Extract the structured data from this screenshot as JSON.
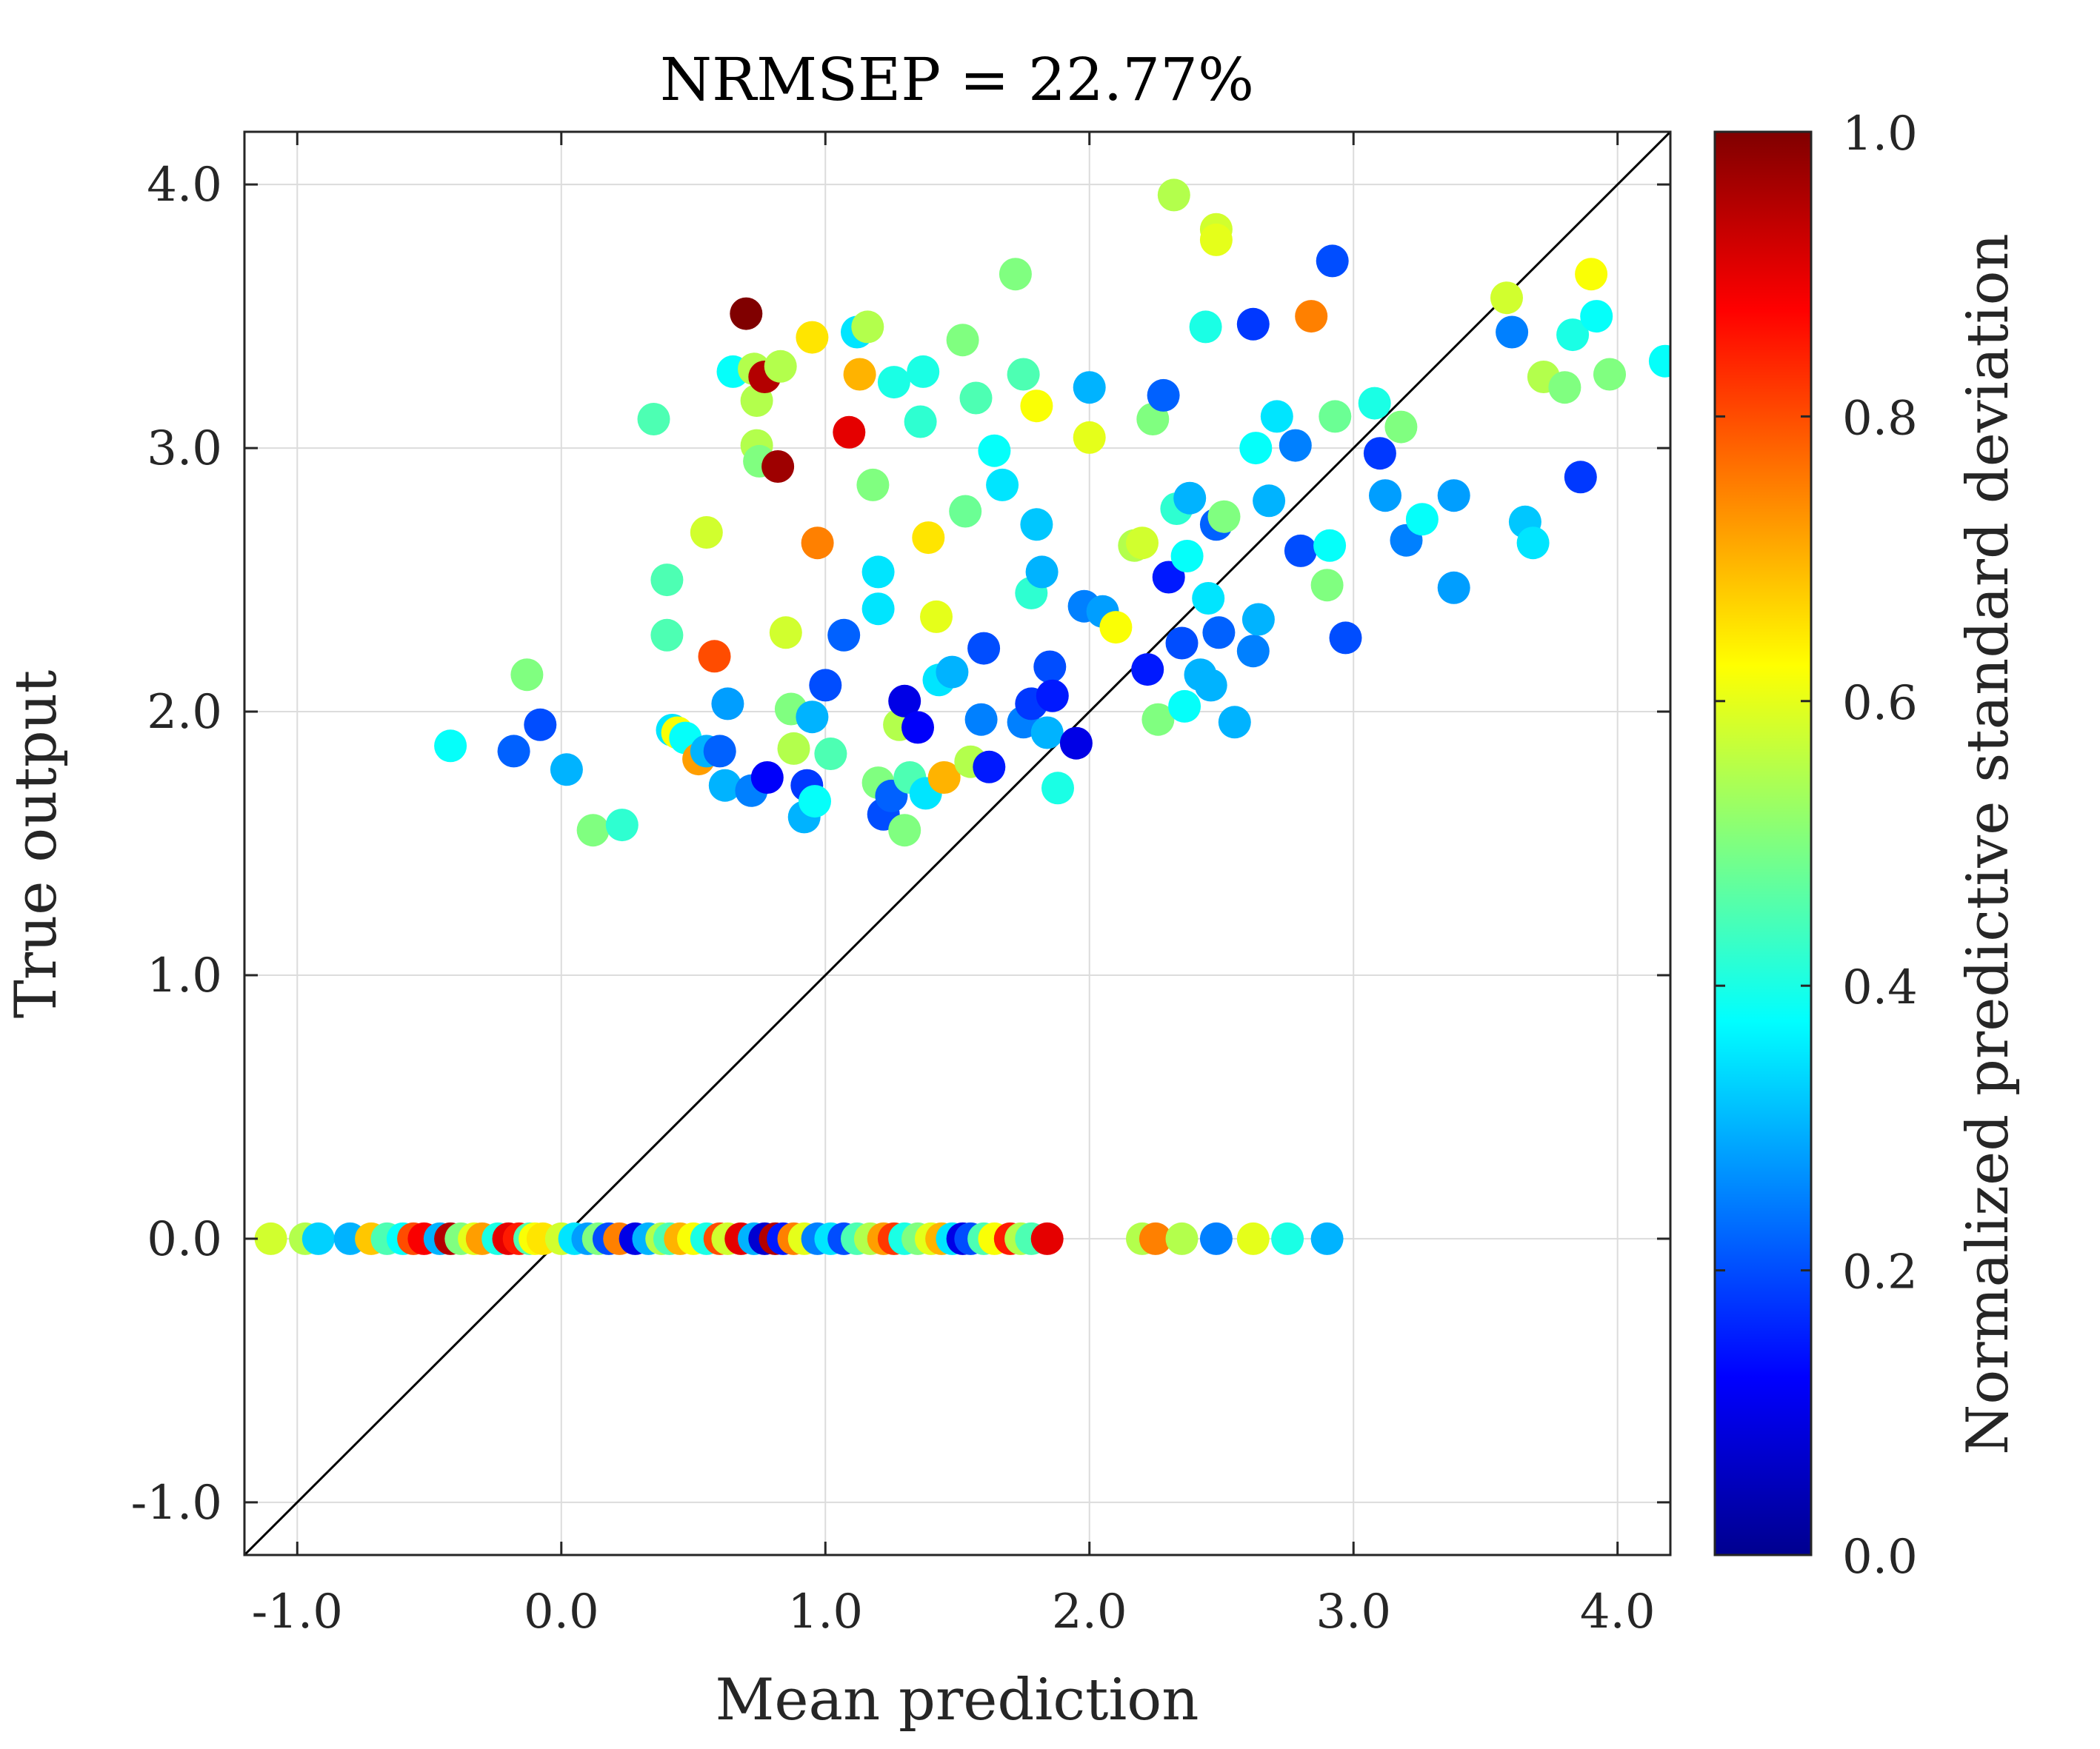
{
  "chart_data": {
    "type": "scatter",
    "title": "NRMSEP = 22.77%",
    "xlabel": "Mean prediction",
    "ylabel": "True output",
    "xlim": [
      -1.2,
      4.2
    ],
    "ylim": [
      -1.2,
      4.2
    ],
    "x_ticks": [
      -1.0,
      0.0,
      1.0,
      2.0,
      3.0,
      4.0
    ],
    "x_tick_labels": [
      "-1.0",
      "0.0",
      "1.0",
      "2.0",
      "3.0",
      "4.0"
    ],
    "y_ticks": [
      -1.0,
      0.0,
      1.0,
      2.0,
      3.0,
      4.0
    ],
    "y_tick_labels": [
      "-1.0",
      "0.0",
      "1.0",
      "2.0",
      "3.0",
      "4.0"
    ],
    "grid": true,
    "reference_line": "y = x",
    "colorbar": {
      "label": "Normalized predictive standard deviation",
      "colormap": "jet",
      "range": [
        0.0,
        1.0
      ],
      "ticks": [
        0.0,
        0.2,
        0.4,
        0.6,
        0.8,
        1.0
      ],
      "tick_labels": [
        "0.0",
        "0.2",
        "0.4",
        "0.6",
        "0.8",
        "1.0"
      ]
    },
    "points": [
      [
        -1.1,
        0,
        0.58
      ],
      [
        -0.97,
        0,
        0.55
      ],
      [
        -0.92,
        0,
        0.33
      ],
      [
        -0.8,
        0,
        0.3
      ],
      [
        -0.72,
        0,
        0.68
      ],
      [
        -0.66,
        0,
        0.45
      ],
      [
        -0.6,
        0,
        0.38
      ],
      [
        -0.56,
        0,
        0.8
      ],
      [
        -0.52,
        0,
        0.88
      ],
      [
        -0.46,
        0,
        0.3
      ],
      [
        -0.42,
        0,
        0.95
      ],
      [
        -0.38,
        0,
        0.5
      ],
      [
        -0.33,
        0,
        0.6
      ],
      [
        -0.3,
        0,
        0.72
      ],
      [
        -0.24,
        0,
        0.4
      ],
      [
        -0.2,
        0,
        0.9
      ],
      [
        -0.16,
        0,
        0.85
      ],
      [
        -0.12,
        0,
        0.45
      ],
      [
        -0.1,
        0,
        0.62
      ],
      [
        -0.07,
        0,
        0.65
      ],
      [
        0.0,
        0,
        0.58
      ],
      [
        0.05,
        0,
        0.35
      ],
      [
        0.1,
        0,
        0.28
      ],
      [
        0.14,
        0,
        0.5
      ],
      [
        0.18,
        0,
        0.2
      ],
      [
        0.22,
        0,
        0.75
      ],
      [
        0.28,
        0,
        0.1
      ],
      [
        0.33,
        0,
        0.3
      ],
      [
        0.38,
        0,
        0.55
      ],
      [
        0.41,
        0,
        0.45
      ],
      [
        0.45,
        0,
        0.7
      ],
      [
        0.5,
        0,
        0.62
      ],
      [
        0.55,
        0,
        0.4
      ],
      [
        0.6,
        0,
        0.8
      ],
      [
        0.63,
        0,
        0.58
      ],
      [
        0.68,
        0,
        0.9
      ],
      [
        0.73,
        0,
        0.3
      ],
      [
        0.77,
        0,
        0.08
      ],
      [
        0.81,
        0,
        0.95
      ],
      [
        0.84,
        0,
        0.15
      ],
      [
        0.88,
        0,
        0.75
      ],
      [
        0.92,
        0,
        0.6
      ],
      [
        0.97,
        0,
        0.25
      ],
      [
        1.02,
        0,
        0.35
      ],
      [
        1.07,
        0,
        0.2
      ],
      [
        1.12,
        0,
        0.45
      ],
      [
        1.17,
        0,
        0.55
      ],
      [
        1.22,
        0,
        0.72
      ],
      [
        1.26,
        0,
        0.82
      ],
      [
        1.3,
        0,
        0.4
      ],
      [
        1.35,
        0,
        0.5
      ],
      [
        1.4,
        0,
        0.6
      ],
      [
        1.44,
        0,
        0.7
      ],
      [
        1.48,
        0,
        0.35
      ],
      [
        1.52,
        0,
        0.1
      ],
      [
        1.55,
        0,
        0.2
      ],
      [
        1.6,
        0,
        0.45
      ],
      [
        1.64,
        0,
        0.62
      ],
      [
        1.7,
        0,
        0.85
      ],
      [
        1.74,
        0,
        0.55
      ],
      [
        1.78,
        0,
        0.45
      ],
      [
        1.84,
        0,
        0.9
      ],
      [
        2.2,
        0,
        0.55
      ],
      [
        2.25,
        0,
        0.75
      ],
      [
        2.35,
        0,
        0.55
      ],
      [
        2.48,
        0,
        0.25
      ],
      [
        2.62,
        0,
        0.6
      ],
      [
        2.75,
        0,
        0.4
      ],
      [
        2.9,
        0,
        0.3
      ],
      [
        -0.42,
        1.87,
        0.38
      ],
      [
        -0.18,
        1.85,
        0.22
      ],
      [
        -0.08,
        1.95,
        0.2
      ],
      [
        0.02,
        1.78,
        0.3
      ],
      [
        -0.13,
        2.14,
        0.5
      ],
      [
        0.12,
        1.55,
        0.5
      ],
      [
        0.23,
        1.57,
        0.42
      ],
      [
        0.35,
        3.11,
        0.45
      ],
      [
        0.4,
        2.5,
        0.45
      ],
      [
        0.4,
        2.29,
        0.45
      ],
      [
        0.42,
        1.93,
        0.35
      ],
      [
        0.44,
        1.92,
        0.62
      ],
      [
        0.47,
        1.9,
        0.38
      ],
      [
        0.52,
        1.82,
        0.72
      ],
      [
        0.55,
        1.85,
        0.3
      ],
      [
        0.55,
        2.68,
        0.58
      ],
      [
        0.58,
        2.21,
        0.8
      ],
      [
        0.6,
        1.85,
        0.22
      ],
      [
        0.62,
        1.72,
        0.3
      ],
      [
        0.63,
        2.03,
        0.28
      ],
      [
        0.65,
        3.29,
        0.38
      ],
      [
        0.7,
        3.51,
        1.0
      ],
      [
        0.72,
        1.7,
        0.25
      ],
      [
        0.73,
        3.3,
        0.55
      ],
      [
        0.74,
        3.18,
        0.55
      ],
      [
        0.74,
        3.01,
        0.55
      ],
      [
        0.75,
        2.95,
        0.5
      ],
      [
        0.77,
        3.27,
        0.95
      ],
      [
        0.78,
        1.75,
        0.12
      ],
      [
        0.82,
        2.93,
        0.97
      ],
      [
        0.83,
        3.31,
        0.55
      ],
      [
        0.85,
        2.3,
        0.58
      ],
      [
        0.87,
        2.01,
        0.5
      ],
      [
        0.88,
        1.86,
        0.55
      ],
      [
        0.92,
        1.6,
        0.3
      ],
      [
        0.93,
        1.72,
        0.18
      ],
      [
        0.95,
        1.98,
        0.3
      ],
      [
        0.96,
        1.66,
        0.38
      ],
      [
        0.95,
        3.42,
        0.65
      ],
      [
        0.97,
        2.64,
        0.75
      ],
      [
        1.0,
        2.1,
        0.2
      ],
      [
        1.02,
        1.84,
        0.45
      ],
      [
        1.07,
        2.29,
        0.22
      ],
      [
        1.09,
        3.06,
        0.9
      ],
      [
        1.12,
        3.44,
        0.35
      ],
      [
        1.13,
        3.28,
        0.7
      ],
      [
        1.16,
        3.46,
        0.55
      ],
      [
        1.18,
        2.86,
        0.5
      ],
      [
        1.2,
        2.53,
        0.35
      ],
      [
        1.2,
        2.39,
        0.35
      ],
      [
        1.2,
        1.73,
        0.5
      ],
      [
        1.22,
        1.61,
        0.2
      ],
      [
        1.25,
        1.68,
        0.22
      ],
      [
        1.26,
        3.25,
        0.4
      ],
      [
        1.28,
        1.95,
        0.55
      ],
      [
        1.3,
        2.04,
        0.1
      ],
      [
        1.3,
        1.55,
        0.5
      ],
      [
        1.32,
        1.75,
        0.45
      ],
      [
        1.35,
        1.94,
        0.12
      ],
      [
        1.36,
        3.1,
        0.42
      ],
      [
        1.37,
        3.29,
        0.4
      ],
      [
        1.38,
        1.69,
        0.35
      ],
      [
        1.39,
        2.66,
        0.65
      ],
      [
        1.42,
        2.36,
        0.6
      ],
      [
        1.43,
        2.12,
        0.35
      ],
      [
        1.45,
        1.75,
        0.7
      ],
      [
        1.48,
        2.15,
        0.3
      ],
      [
        1.52,
        3.41,
        0.5
      ],
      [
        1.53,
        2.76,
        0.48
      ],
      [
        1.55,
        1.81,
        0.55
      ],
      [
        1.57,
        3.19,
        0.45
      ],
      [
        1.59,
        1.97,
        0.25
      ],
      [
        1.6,
        2.24,
        0.2
      ],
      [
        1.62,
        1.79,
        0.15
      ],
      [
        1.64,
        2.99,
        0.38
      ],
      [
        1.67,
        2.86,
        0.35
      ],
      [
        1.72,
        3.66,
        0.5
      ],
      [
        1.75,
        3.28,
        0.45
      ],
      [
        1.75,
        1.96,
        0.25
      ],
      [
        1.78,
        2.45,
        0.42
      ],
      [
        1.78,
        2.03,
        0.18
      ],
      [
        1.8,
        2.71,
        0.32
      ],
      [
        1.8,
        3.16,
        0.62
      ],
      [
        1.82,
        2.53,
        0.3
      ],
      [
        1.84,
        1.92,
        0.3
      ],
      [
        1.85,
        2.17,
        0.2
      ],
      [
        1.86,
        2.06,
        0.15
      ],
      [
        1.88,
        1.71,
        0.4
      ],
      [
        1.95,
        1.88,
        0.1
      ],
      [
        1.98,
        2.4,
        0.25
      ],
      [
        2.0,
        3.23,
        0.3
      ],
      [
        2.0,
        3.04,
        0.6
      ],
      [
        2.05,
        2.38,
        0.28
      ],
      [
        2.1,
        2.32,
        0.62
      ],
      [
        2.17,
        2.63,
        0.55
      ],
      [
        2.2,
        2.64,
        0.58
      ],
      [
        2.22,
        2.16,
        0.15
      ],
      [
        2.24,
        3.11,
        0.5
      ],
      [
        2.26,
        1.97,
        0.5
      ],
      [
        2.28,
        3.2,
        0.22
      ],
      [
        2.3,
        2.51,
        0.15
      ],
      [
        2.32,
        3.96,
        0.55
      ],
      [
        2.33,
        2.77,
        0.42
      ],
      [
        2.35,
        2.26,
        0.2
      ],
      [
        2.36,
        2.02,
        0.38
      ],
      [
        2.37,
        2.59,
        0.38
      ],
      [
        2.38,
        2.81,
        0.3
      ],
      [
        2.42,
        2.14,
        0.3
      ],
      [
        2.44,
        3.46,
        0.4
      ],
      [
        2.45,
        2.43,
        0.35
      ],
      [
        2.46,
        2.1,
        0.3
      ],
      [
        2.48,
        3.83,
        0.58
      ],
      [
        2.48,
        3.79,
        0.6
      ],
      [
        2.48,
        2.71,
        0.22
      ],
      [
        2.49,
        2.3,
        0.22
      ],
      [
        2.51,
        2.74,
        0.5
      ],
      [
        2.55,
        1.96,
        0.3
      ],
      [
        2.62,
        3.47,
        0.18
      ],
      [
        2.62,
        2.23,
        0.25
      ],
      [
        2.63,
        3.0,
        0.38
      ],
      [
        2.64,
        2.35,
        0.3
      ],
      [
        2.68,
        2.8,
        0.3
      ],
      [
        2.71,
        3.12,
        0.35
      ],
      [
        2.78,
        3.01,
        0.25
      ],
      [
        2.8,
        2.61,
        0.2
      ],
      [
        2.84,
        3.5,
        0.75
      ],
      [
        2.9,
        2.48,
        0.5
      ],
      [
        2.91,
        2.63,
        0.38
      ],
      [
        2.92,
        3.71,
        0.2
      ],
      [
        2.93,
        3.12,
        0.48
      ],
      [
        2.97,
        2.28,
        0.2
      ],
      [
        3.08,
        3.17,
        0.4
      ],
      [
        3.1,
        2.98,
        0.18
      ],
      [
        3.12,
        2.82,
        0.28
      ],
      [
        3.18,
        3.08,
        0.5
      ],
      [
        3.2,
        2.65,
        0.25
      ],
      [
        3.26,
        2.73,
        0.38
      ],
      [
        3.38,
        2.47,
        0.28
      ],
      [
        3.38,
        2.82,
        0.28
      ],
      [
        3.58,
        3.57,
        0.58
      ],
      [
        3.6,
        3.44,
        0.25
      ],
      [
        3.65,
        2.72,
        0.32
      ],
      [
        3.68,
        2.64,
        0.35
      ],
      [
        3.72,
        3.27,
        0.55
      ],
      [
        3.8,
        3.23,
        0.5
      ],
      [
        3.83,
        3.43,
        0.4
      ],
      [
        3.86,
        2.89,
        0.18
      ],
      [
        3.9,
        3.66,
        0.62
      ],
      [
        3.92,
        3.5,
        0.38
      ],
      [
        3.97,
        3.28,
        0.5
      ],
      [
        4.18,
        3.33,
        0.38
      ]
    ]
  }
}
